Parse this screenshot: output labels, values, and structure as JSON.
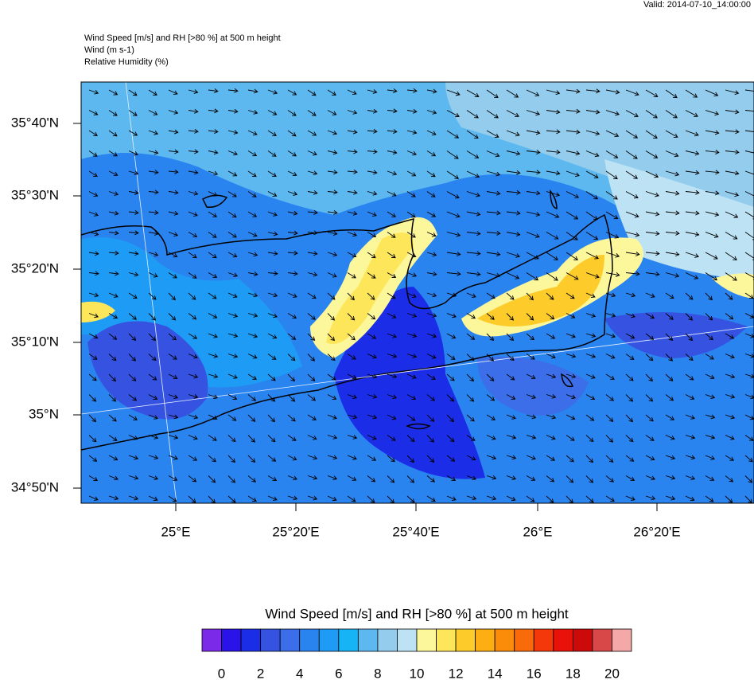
{
  "valid": "Valid: 2014-07-10_14:00:00",
  "header": {
    "lines": [
      "Wind Speed [m/s] and RH [>80 %] at 500 m height",
      "Wind   (m s-1)",
      "Relative Humidity   (%)"
    ]
  },
  "axes": {
    "y_labels": [
      "35°40'N",
      "35°30'N",
      "35°20'N",
      "35°10'N",
      "35°N",
      "34°50'N"
    ],
    "x_labels": [
      "25°E",
      "25°20'E",
      "25°40'E",
      "26°E",
      "26°20'E"
    ]
  },
  "colorbar": {
    "title": "Wind Speed [m/s] and RH [>80 %] at 500 m height",
    "colors": [
      "#7b2ae8",
      "#2a13e8",
      "#1c2de8",
      "#3552e0",
      "#3b6ee8",
      "#2a84f0",
      "#1e9cf5",
      "#16b4f5",
      "#5cb8ee",
      "#93ccec",
      "#bde2f4",
      "#fdf79c",
      "#fde65a",
      "#fdcc2a",
      "#fcae12",
      "#fa8c0a",
      "#f86a0a",
      "#f5380a",
      "#e8120a",
      "#cc0a0a",
      "#d84848",
      "#f4a8a8"
    ],
    "labels": [
      "0",
      "2",
      "4",
      "6",
      "8",
      "10",
      "12",
      "14",
      "16",
      "18",
      "20"
    ]
  }
}
